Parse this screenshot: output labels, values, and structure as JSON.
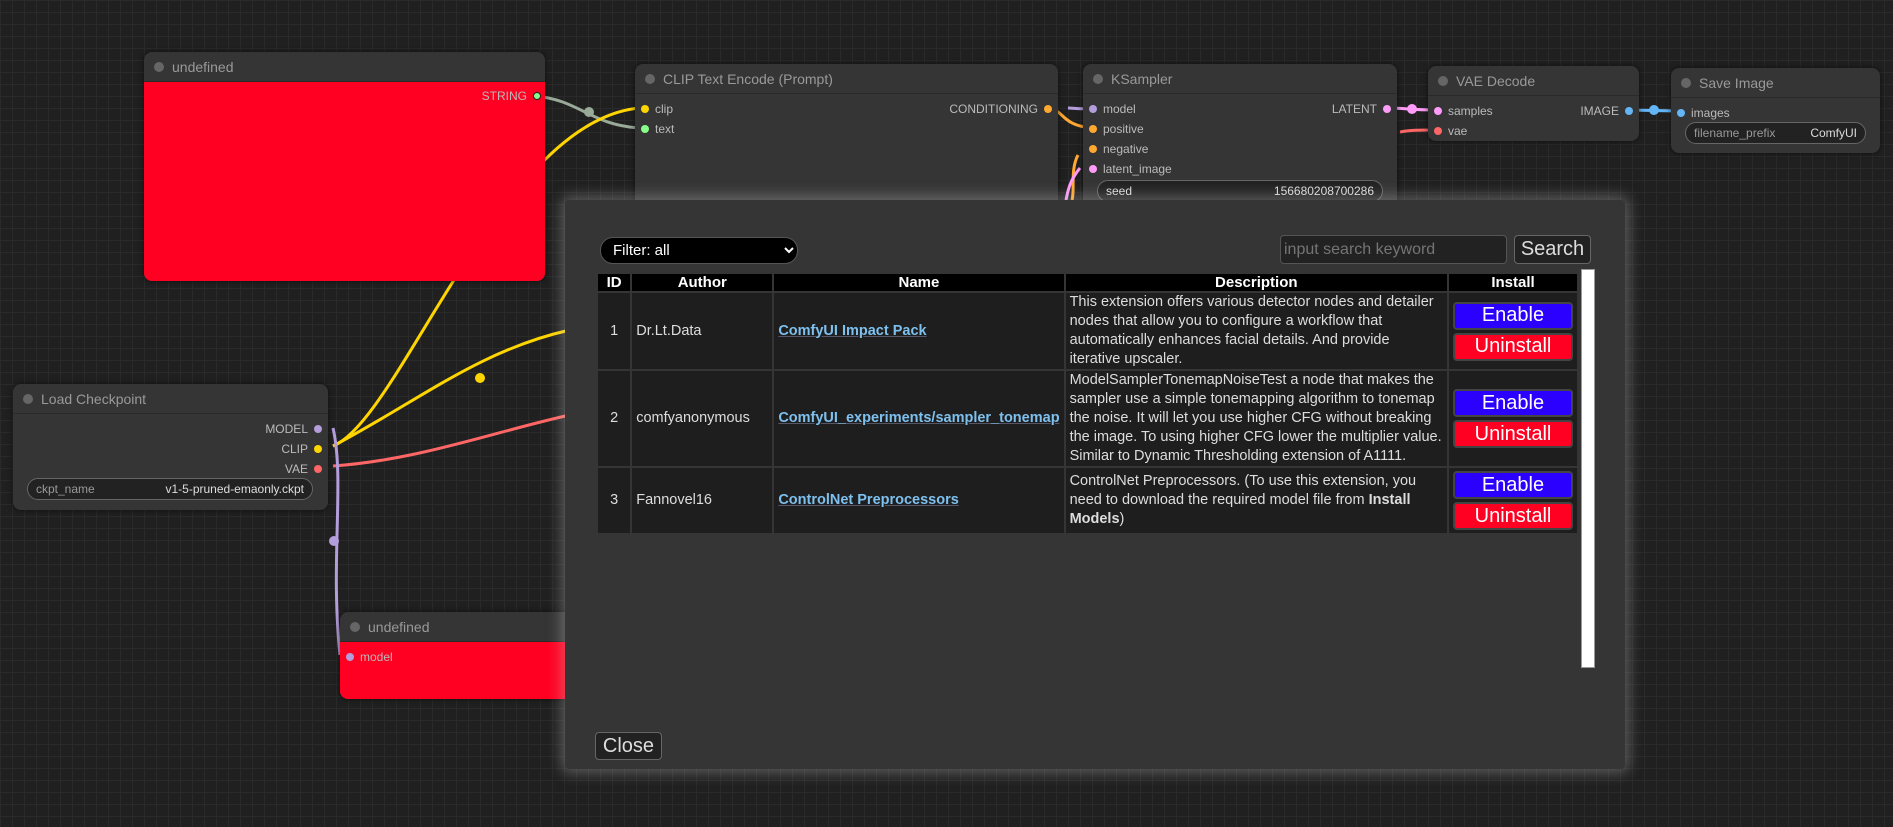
{
  "nodes": {
    "undefined_top": {
      "title": "undefined",
      "output": "STRING"
    },
    "clip_text_encode": {
      "title": "CLIP Text Encode (Prompt)",
      "inputs": [
        "clip",
        "text"
      ],
      "output": "CONDITIONING"
    },
    "ksampler": {
      "title": "KSampler",
      "inputs": [
        "model",
        "positive",
        "negative",
        "latent_image"
      ],
      "output": "LATENT",
      "seed_label": "seed",
      "seed_value": "156680208700286"
    },
    "vae_decode": {
      "title": "VAE Decode",
      "inputs": [
        "samples",
        "vae"
      ],
      "output": "IMAGE"
    },
    "save_image": {
      "title": "Save Image",
      "input": "images",
      "prefix_label": "filename_prefix",
      "prefix_value": "ComfyUI"
    },
    "load_checkpoint": {
      "title": "Load Checkpoint",
      "outputs": [
        "MODEL",
        "CLIP",
        "VAE"
      ],
      "ckpt_label": "ckpt_name",
      "ckpt_value": "v1-5-pruned-emaonly.ckpt"
    },
    "undefined_bottom": {
      "title": "undefined",
      "input": "model"
    }
  },
  "colors": {
    "node_red": "#ff0022",
    "enable": "#2b00ff",
    "uninstall": "#ff0022",
    "link": "#7ec0ee"
  },
  "modal": {
    "filter": "Filter: all",
    "search_placeholder": "input search keyword",
    "search_label": "Search",
    "close_label": "Close",
    "headers": [
      "ID",
      "Author",
      "Name",
      "Description",
      "Install"
    ],
    "rows": [
      {
        "id": "1",
        "author": "Dr.Lt.Data",
        "name": "ComfyUI Impact Pack",
        "description": "This extension offers various detector nodes and detailer nodes that allow you to configure a workflow that automatically enhances facial details. And provide iterative upscaler.",
        "enable": "Enable",
        "uninstall": "Uninstall"
      },
      {
        "id": "2",
        "author": "comfyanonymous",
        "name": "ComfyUI_experiments/sampler_tonemap",
        "description": "ModelSamplerTonemapNoiseTest a node that makes the sampler use a simple tonemapping algorithm to tonemap the noise. It will let you use higher CFG without breaking the image. To using higher CFG lower the multiplier value. Similar to Dynamic Thresholding extension of A1111.",
        "enable": "Enable",
        "uninstall": "Uninstall"
      },
      {
        "id": "3",
        "author": "Fannovel16",
        "name": "ControlNet Preprocessors",
        "description_pre": "ControlNet Preprocessors. (To use this extension, you need to download the required model file from ",
        "description_bold": "Install Models",
        "description_post": ")",
        "enable": "Enable",
        "uninstall": "Uninstall"
      }
    ]
  }
}
